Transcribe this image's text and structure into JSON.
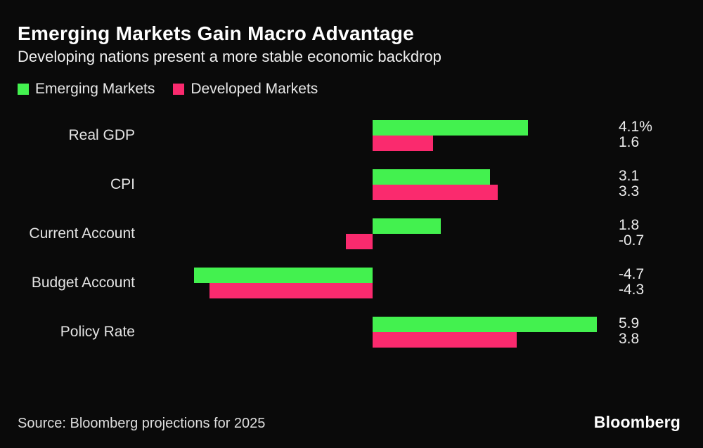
{
  "header": {
    "title": "Emerging Markets Gain Macro Advantage",
    "subtitle": "Developing nations present a more stable economic backdrop"
  },
  "legend": {
    "items": [
      {
        "label": "Emerging Markets",
        "color": "#43f14f"
      },
      {
        "label": "Developed Markets",
        "color": "#fa2a6e"
      }
    ]
  },
  "chart_data": {
    "type": "bar",
    "orientation": "horizontal",
    "title": "Emerging Markets Gain Macro Advantage",
    "subtitle": "Developing nations present a more stable economic backdrop",
    "categories": [
      "Real GDP",
      "CPI",
      "Current Account",
      "Budget Account",
      "Policy Rate"
    ],
    "series": [
      {
        "name": "Emerging Markets",
        "color": "#43f14f",
        "values": [
          4.1,
          3.1,
          1.8,
          -4.7,
          5.9
        ]
      },
      {
        "name": "Developed Markets",
        "color": "#fa2a6e",
        "values": [
          1.6,
          3.3,
          -0.7,
          -4.3,
          3.8
        ]
      }
    ],
    "value_labels": [
      [
        "4.1%",
        "1.6"
      ],
      [
        "3.1",
        "3.3"
      ],
      [
        "1.8",
        "-0.7"
      ],
      [
        "-4.7",
        "-4.3"
      ],
      [
        "5.9",
        "3.8"
      ]
    ],
    "unit": "%",
    "xlim": [
      -5,
      6.5
    ],
    "baseline": 0,
    "grid": false,
    "legend_position": "top-left",
    "background": "#0a0a0a"
  },
  "footer": {
    "source": "Source: Bloomberg projections for 2025",
    "logo": "Bloomberg"
  }
}
